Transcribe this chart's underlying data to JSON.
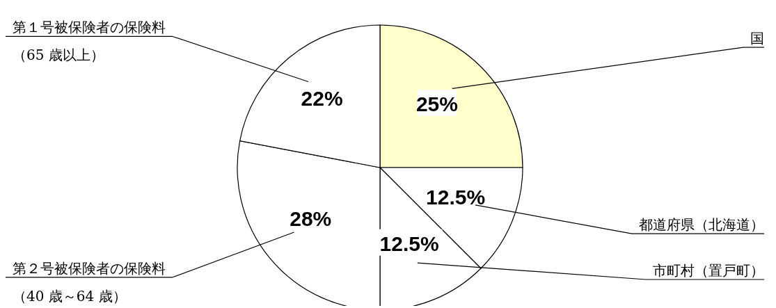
{
  "chart_data": {
    "type": "pie",
    "categories": [
      "国",
      "都道府県（北海道）",
      "市町村（置戸町）",
      "第２号被保険者の保険料（40 歳～64 歳）",
      "第１号被保険者の保険料（65 歳以上）"
    ],
    "values": [
      25,
      12.5,
      12.5,
      28,
      22
    ],
    "colors": [
      "#ffffcc",
      "#ffffff",
      "#ffffff",
      "#ffffff",
      "#ffffff"
    ],
    "value_labels": [
      "25%",
      "12.5%",
      "12.5%",
      "28%",
      "22%"
    ],
    "legend": false
  }
}
